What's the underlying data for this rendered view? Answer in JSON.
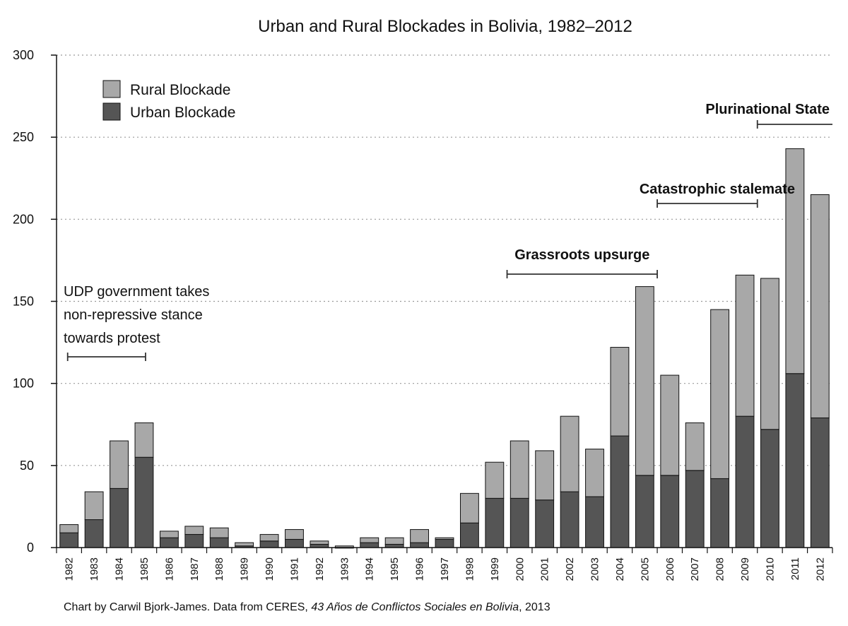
{
  "chart_data": {
    "type": "bar",
    "stacked": true,
    "title": "Urban and Rural Blockades in Bolivia, 1982–2012",
    "xlabel": "",
    "ylabel": "",
    "ylim": [
      0,
      300
    ],
    "yticks": [
      0,
      50,
      100,
      150,
      200,
      250,
      300
    ],
    "grid": "horizontal dotted",
    "legend_position": "top-left",
    "categories": [
      "1982",
      "1983",
      "1984",
      "1985",
      "1986",
      "1987",
      "1988",
      "1989",
      "1990",
      "1991",
      "1992",
      "1993",
      "1994",
      "1995",
      "1996",
      "1997",
      "1998",
      "1999",
      "2000",
      "2001",
      "2002",
      "2003",
      "2004",
      "2005",
      "2006",
      "2007",
      "2008",
      "2009",
      "2010",
      "2011",
      "2012"
    ],
    "series": [
      {
        "name": "Urban Blockade",
        "color": "#555555",
        "values": [
          9,
          17,
          36,
          55,
          6,
          8,
          6,
          1,
          4,
          5,
          2,
          0,
          3,
          2,
          3,
          5,
          15,
          30,
          30,
          29,
          34,
          31,
          68,
          44,
          44,
          47,
          42,
          80,
          72,
          106,
          79
        ]
      },
      {
        "name": "Rural Blockade",
        "color": "#a8a8a8",
        "values": [
          5,
          17,
          29,
          21,
          4,
          5,
          6,
          2,
          4,
          6,
          2,
          1,
          3,
          4,
          8,
          1,
          18,
          22,
          35,
          30,
          46,
          29,
          54,
          115,
          61,
          29,
          103,
          86,
          92,
          137,
          136
        ]
      }
    ],
    "legend": [
      "Rural Blockade",
      "Urban Blockade"
    ],
    "annotations": [
      {
        "lines": [
          "UDP government takes",
          "non-repressive stance",
          "towards protest"
        ],
        "range": [
          "1982",
          "1985"
        ],
        "bold": false
      },
      {
        "lines": [
          "Grassroots upsurge"
        ],
        "range": [
          "2000",
          "2005"
        ],
        "bold": true
      },
      {
        "lines": [
          "Catastrophic stalemate"
        ],
        "range": [
          "2006",
          "2009"
        ],
        "bold": true
      },
      {
        "lines": [
          "Plurinational State"
        ],
        "range": [
          "2010",
          "2012"
        ],
        "bold": true,
        "open_end": true
      }
    ],
    "source": {
      "prefix": "Chart by Carwil Bjork-James. Data from CERES, ",
      "italic": "43 Años de Conflictos Sociales en Bolivia",
      "suffix": ", 2013"
    }
  }
}
